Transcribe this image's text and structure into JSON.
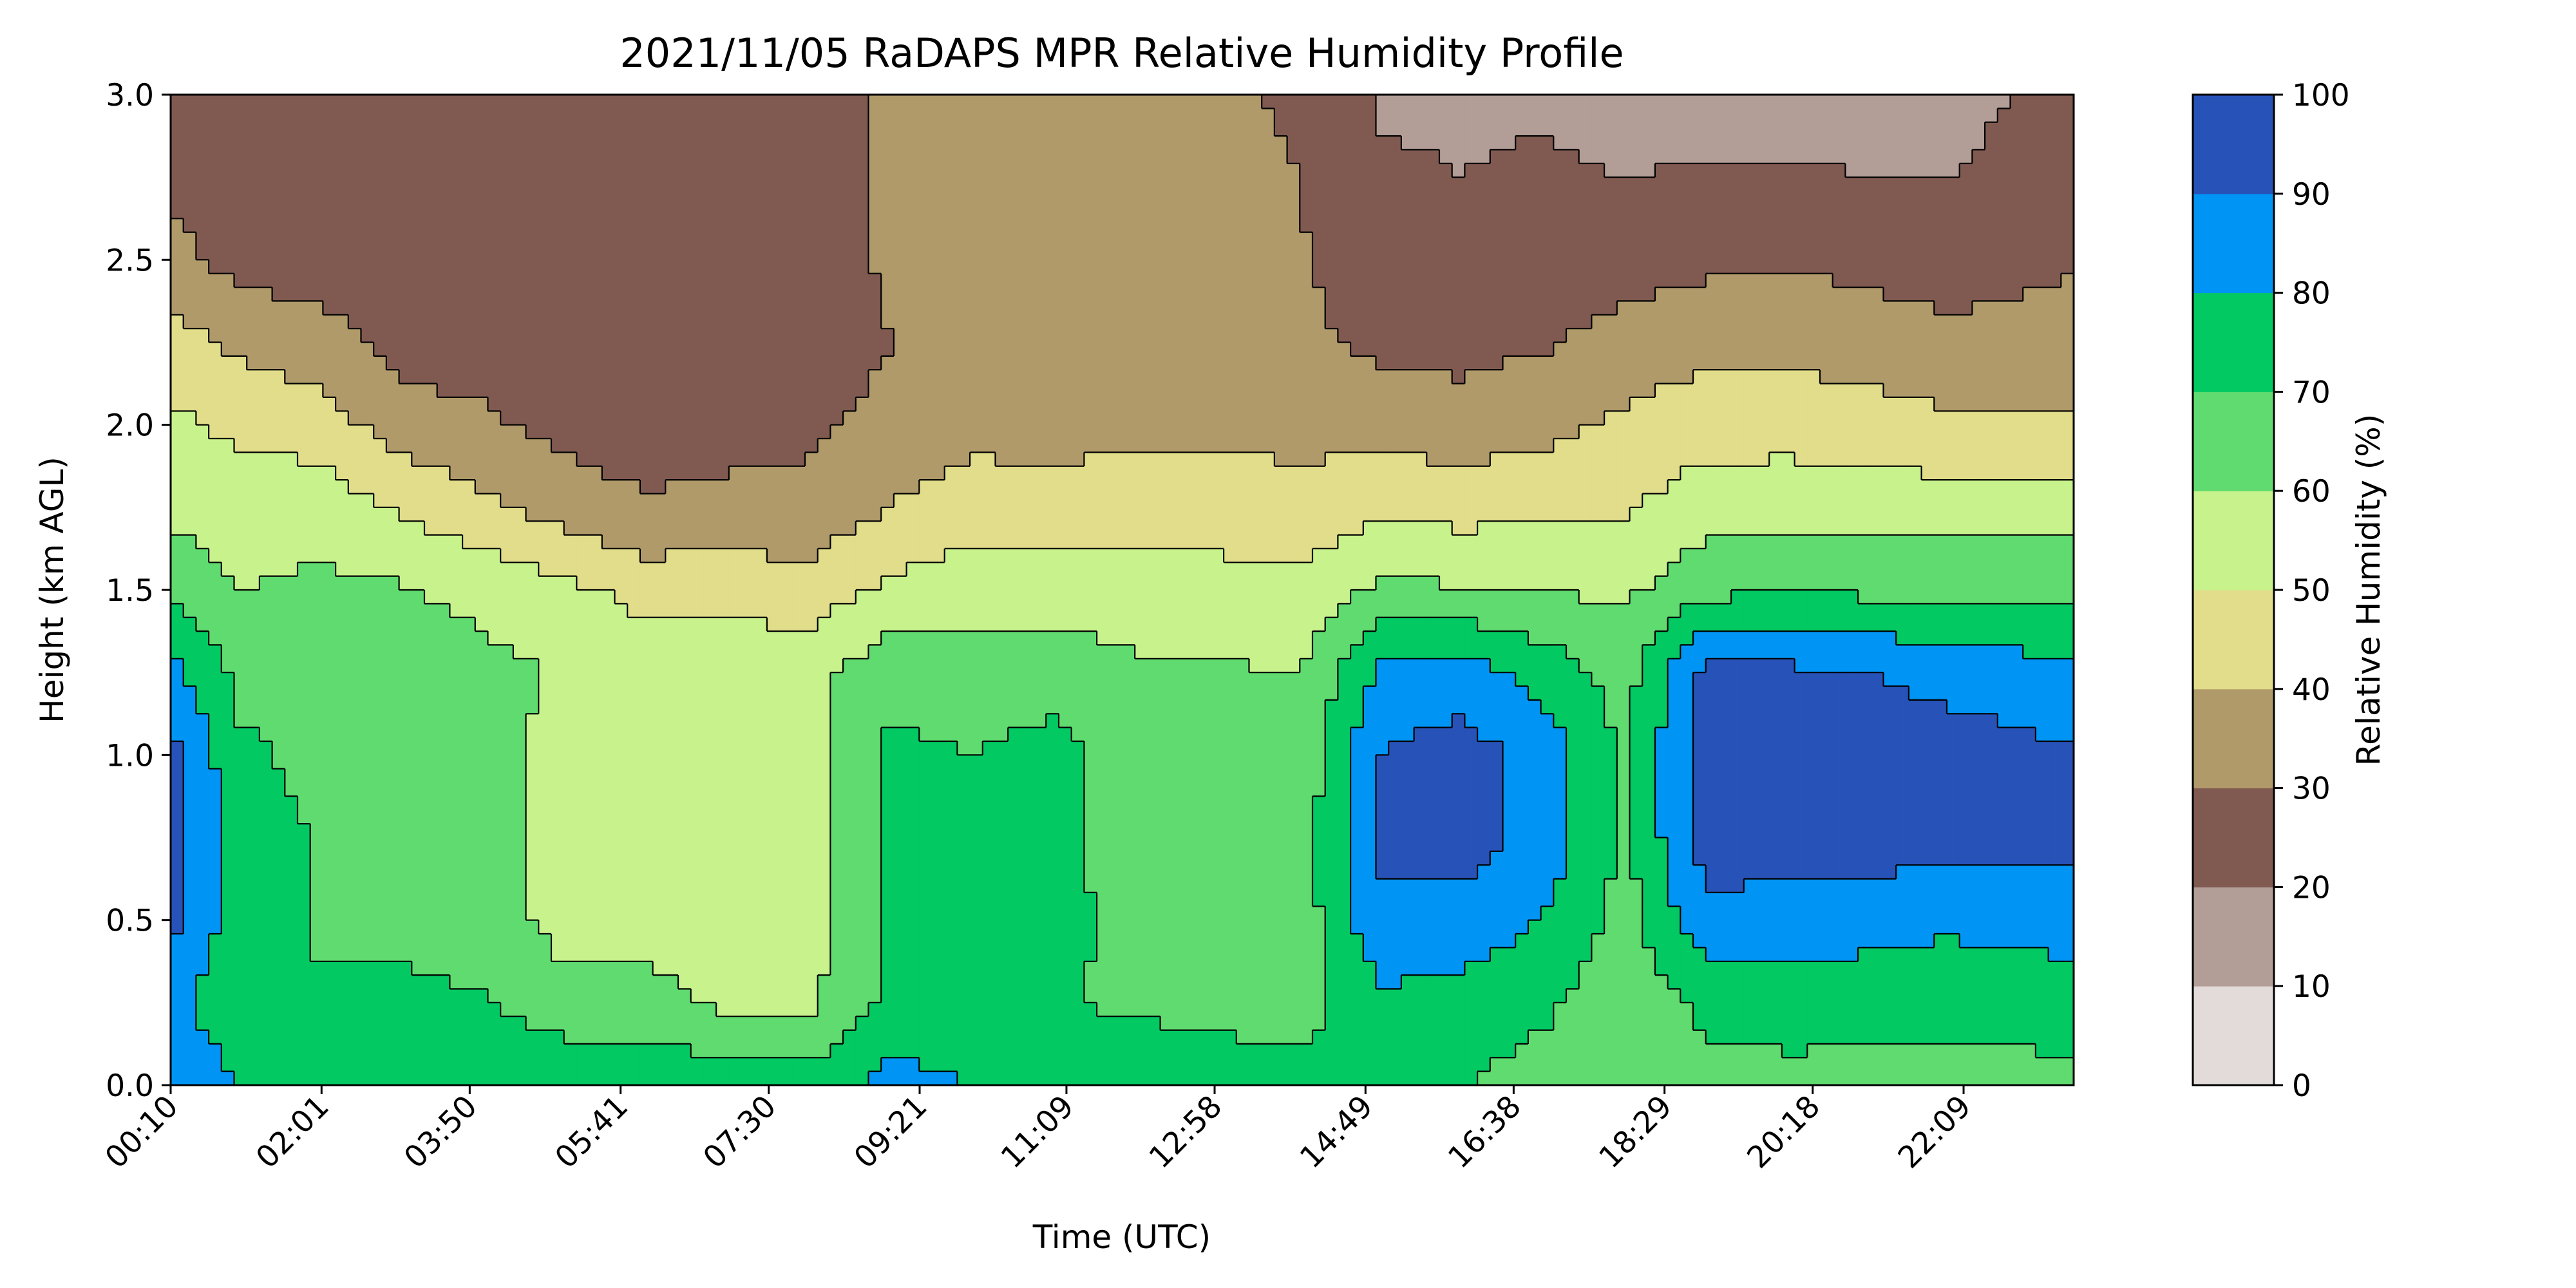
{
  "chart_data": {
    "type": "heatmap",
    "subtype": "filled-contour",
    "title": "2021/11/05 RaDAPS MPR Relative Humidity Profile",
    "xlabel": "Time (UTC)",
    "ylabel": "Height (km AGL)",
    "colorbar_label": "Relative Humidity (%)",
    "x_tick_labels": [
      "00:10",
      "02:01",
      "03:50",
      "05:41",
      "07:30",
      "09:21",
      "11:09",
      "12:58",
      "14:49",
      "16:38",
      "18:29",
      "20:18",
      "22:09"
    ],
    "x_range_hours": [
      0.1667,
      23.5
    ],
    "x_tick_hours": [
      0.1667,
      2.0167,
      3.8333,
      5.6833,
      7.5,
      9.35,
      11.15,
      12.9667,
      14.8167,
      16.6333,
      18.4833,
      20.3,
      22.15
    ],
    "y_ticks": [
      0.0,
      0.5,
      1.0,
      1.5,
      2.0,
      2.5,
      3.0
    ],
    "y_tick_labels": [
      "0.0",
      "0.5",
      "1.0",
      "1.5",
      "2.0",
      "2.5",
      "3.0"
    ],
    "ylim": [
      0.0,
      3.0
    ],
    "colorbar_ticks": [
      "0",
      "10",
      "20",
      "30",
      "40",
      "50",
      "60",
      "70",
      "80",
      "90",
      "100"
    ],
    "levels": [
      0,
      10,
      20,
      30,
      40,
      50,
      60,
      70,
      80,
      90,
      100
    ],
    "colors": [
      "#e3dbd9",
      "#b39d97",
      "#805a51",
      "#b09a6a",
      "#e1dd8a",
      "#c8f28c",
      "#60db70",
      "#02c962",
      "#0094f4",
      "#2752b8"
    ],
    "grid": false,
    "contour_line_color": "#000000",
    "rh_anchor_times_hours": [
      0.1667,
      1,
      2,
      3,
      4,
      5,
      6,
      7,
      8,
      9,
      10,
      11,
      12,
      13,
      14,
      15,
      16,
      17,
      18,
      19,
      20,
      21,
      22,
      23.5
    ],
    "rh_anchor_heights_km": [
      0,
      0.25,
      0.5,
      0.75,
      1,
      1.25,
      1.5,
      1.75,
      2,
      2.25,
      2.5,
      2.75,
      3
    ],
    "rh_anchor_values_percent": [
      [
        88,
        84,
        93,
        95,
        94,
        84,
        67,
        57,
        52,
        44,
        34,
        26,
        24
      ],
      [
        80,
        72,
        74,
        76,
        72,
        67,
        60,
        55,
        48,
        38,
        26,
        23,
        22
      ],
      [
        78,
        71,
        69,
        69,
        67,
        66,
        62,
        56,
        45,
        34,
        25,
        22,
        22
      ],
      [
        78,
        71,
        69,
        69,
        66,
        65,
        61,
        49,
        35,
        26,
        23,
        22,
        22
      ],
      [
        78,
        71,
        66,
        66,
        64,
        63,
        57,
        42,
        32,
        24,
        22,
        22,
        23
      ],
      [
        79,
        63,
        56,
        56,
        56,
        59,
        53,
        35,
        27,
        22,
        21,
        22,
        23
      ],
      [
        78,
        63,
        56,
        56,
        56,
        58,
        46,
        31,
        25,
        21,
        21,
        22,
        23
      ],
      [
        76,
        58,
        55,
        55,
        56,
        57,
        46,
        33,
        26,
        22,
        22,
        23,
        24
      ],
      [
        75,
        58,
        56,
        56,
        57,
        57,
        44,
        33,
        28,
        24,
        23,
        24,
        25
      ],
      [
        84,
        72,
        71,
        73,
        72,
        67,
        52,
        40,
        33,
        30,
        32,
        33,
        32
      ],
      [
        80,
        71,
        71,
        70,
        70,
        65,
        55,
        46,
        36,
        34,
        33,
        32,
        31
      ],
      [
        79,
        71,
        73,
        73,
        73,
        66,
        55,
        46,
        35,
        32,
        33,
        32,
        31
      ],
      [
        78,
        68,
        67,
        65,
        65,
        62,
        54,
        45,
        38,
        36,
        36,
        35,
        34
      ],
      [
        75,
        67,
        66,
        65,
        64,
        61,
        53,
        46,
        38,
        34,
        33,
        32,
        31
      ],
      [
        73,
        66,
        64,
        64,
        62,
        60,
        52,
        44,
        36,
        32,
        31,
        30,
        29
      ],
      [
        73,
        78,
        88,
        92,
        90,
        82,
        62,
        48,
        36,
        28,
        24,
        21,
        19
      ],
      [
        70,
        76,
        86,
        95,
        95,
        84,
        61,
        46,
        34,
        27,
        23,
        20,
        19
      ],
      [
        66,
        72,
        80,
        86,
        86,
        76,
        60,
        48,
        37,
        29,
        25,
        21,
        19
      ],
      [
        60,
        62,
        66,
        68,
        68,
        66,
        58,
        49,
        42,
        34,
        25,
        20,
        17
      ],
      [
        66,
        73,
        87,
        95,
        97,
        93,
        67,
        56,
        45,
        37,
        28,
        21,
        16
      ],
      [
        66,
        76,
        85,
        96,
        97,
        92,
        70,
        56,
        46,
        37,
        29,
        21,
        16
      ],
      [
        66,
        74,
        84,
        95,
        96,
        90,
        68,
        56,
        44,
        35,
        27,
        20,
        16
      ],
      [
        66,
        73,
        82,
        94,
        95,
        86,
        67,
        55,
        42,
        32,
        26,
        20,
        15
      ],
      [
        68,
        74,
        85,
        93,
        91,
        83,
        68,
        55,
        41,
        34,
        29,
        27,
        26
      ]
    ]
  }
}
